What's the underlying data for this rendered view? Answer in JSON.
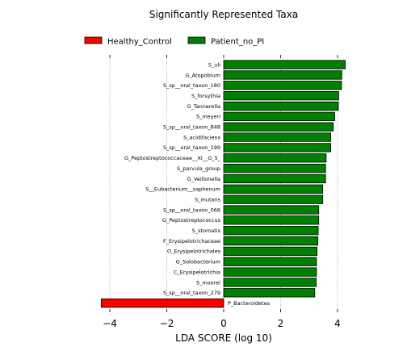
{
  "chart_data": {
    "type": "bar",
    "orientation": "horizontal",
    "title": "Significantly Represented Taxa",
    "xlabel": "LDA SCORE (log 10)",
    "ylabel": "",
    "xlim": [
      -4.5,
      4.5
    ],
    "xticks": [
      -4,
      -2,
      0,
      2,
      4
    ],
    "xtick_labels": [
      "−4",
      "−2",
      "0",
      "2",
      "4"
    ],
    "grid": "vertical dotted",
    "legend": {
      "placement": "top",
      "entries": [
        {
          "name": "Healthy_Control",
          "color": "#ff0000"
        },
        {
          "name": "Patient_no_PI",
          "color": "#008000"
        }
      ]
    },
    "series": [
      {
        "name": "Patient_no_PI",
        "color": "#008000",
        "categories": [
          "S_uli",
          "G_Atopobium",
          "S_sp__oral_taxon_180",
          "S_forsythia",
          "G_Tannerella",
          "S_meyeri",
          "S_sp__oral_taxon_848",
          "S_acidifaciens",
          "S_sp__oral_taxon_199",
          "G_Peptostreptococcaceae__XI__G_5_",
          "S_parvula_group",
          "G_Veillonella",
          "S__Eubacterium__saphenum",
          "S_mutans",
          "S_sp__oral_taxon_066",
          "G_Peptostreptococcus",
          "S_stomatis",
          "F_Erysipelotrichaceae",
          "O_Erysipelotrichales",
          "G_Solobacterium",
          "C_Erysipelotrichia",
          "S_moorei",
          "S_sp__oral_taxon_279"
        ],
        "values": [
          4.27,
          4.15,
          4.14,
          4.04,
          4.03,
          3.9,
          3.85,
          3.76,
          3.76,
          3.6,
          3.58,
          3.58,
          3.48,
          3.48,
          3.34,
          3.34,
          3.32,
          3.31,
          3.28,
          3.26,
          3.26,
          3.25,
          3.2
        ]
      },
      {
        "name": "Healthy_Control",
        "color": "#ff0000",
        "categories": [
          "P_Bacteroidetes"
        ],
        "values": [
          -4.3
        ]
      }
    ]
  }
}
